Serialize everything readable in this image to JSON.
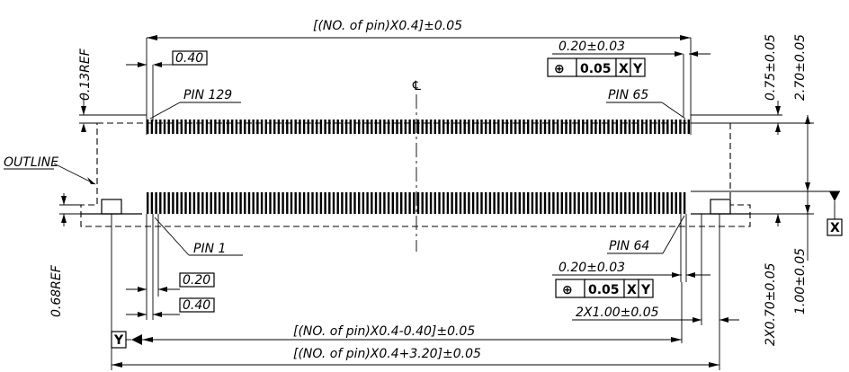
{
  "dims": {
    "top_overall": "[(NO. of pin)X0.4]±0.05",
    "pitch_top": "0.40",
    "tol_top": "0.20±0.03",
    "ref_013": "0.13REF",
    "dim_075": "0.75±0.05",
    "dim_270": "2.70±0.05",
    "dim_068": "0.68REF",
    "pitch_bottom_020": "0.20",
    "pitch_bottom_040": "0.40",
    "tol_bottom": "0.20±0.03",
    "dim_2x100": "2X1.00±0.05",
    "dim_2x070": "2X0.70±0.05",
    "dim_100": "1.00±0.05",
    "bottom_overall_1": "[(NO. of pin)X0.4-0.40]±0.05",
    "bottom_overall_2": "[(NO. of pin)X0.4+3.20]±0.05"
  },
  "labels": {
    "pin_129": "PIN 129",
    "pin_65": "PIN 65",
    "pin_1": "PIN 1",
    "pin_64": "PIN 64",
    "outline": "OUTLINE",
    "centerline": "℄"
  },
  "fcf": {
    "symbol": "⊕",
    "value": "0.05",
    "datum_x": "X",
    "datum_y": "Y"
  },
  "datums": {
    "x": "X",
    "y": "Y"
  }
}
